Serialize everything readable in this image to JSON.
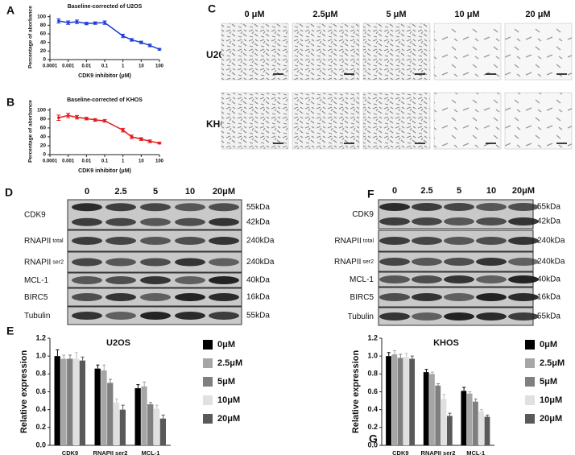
{
  "chart_data": [
    {
      "type": "line",
      "panel": "A",
      "title": "Baseline-corrected of U2OS",
      "x_label": "CDK9 inhibitor (μM)",
      "y_label": "Percentage of aborbance",
      "x": [
        0.0003,
        0.001,
        0.003,
        0.01,
        0.03,
        0.1,
        1,
        3,
        10,
        30,
        100
      ],
      "values": [
        90,
        86,
        88,
        84,
        85,
        86,
        55,
        46,
        40,
        33,
        24
      ],
      "errors": [
        5,
        4,
        4,
        3,
        3,
        4,
        4,
        3,
        3,
        3,
        2
      ],
      "color": "#1f3fd6",
      "log_x": true,
      "xlim": [
        0.0001,
        100
      ],
      "xticks": [
        0.0001,
        0.001,
        0.01,
        0.1,
        1,
        10,
        100
      ],
      "ylim": [
        0,
        105
      ],
      "yticks": [
        0,
        20,
        40,
        60,
        80,
        100
      ]
    },
    {
      "type": "line",
      "panel": "B",
      "title": "Baseline-corrected of KHOS",
      "x_label": "CDK9 inhibitor (μM)",
      "y_label": "Percentage of aborbance",
      "x": [
        0.0003,
        0.001,
        0.003,
        0.01,
        0.03,
        0.1,
        1,
        3,
        10,
        30,
        100
      ],
      "values": [
        83,
        88,
        84,
        81,
        78,
        76,
        55,
        40,
        35,
        30,
        26
      ],
      "errors": [
        6,
        5,
        4,
        3,
        3,
        3,
        4,
        4,
        3,
        3,
        2
      ],
      "color": "#e31a1c",
      "log_x": true,
      "xlim": [
        0.0001,
        100
      ],
      "xticks": [
        0.0001,
        0.001,
        0.01,
        0.1,
        1,
        10,
        100
      ],
      "ylim": [
        0,
        105
      ],
      "yticks": [
        0,
        20,
        40,
        60,
        80,
        100
      ]
    },
    {
      "type": "bar",
      "panel": "E",
      "title": "U2OS",
      "y_label": "Relative expression",
      "categories": [
        "CDK9",
        "RNAPII ser2",
        "MCL-1"
      ],
      "series": [
        {
          "name": "0μM",
          "color": "#000000",
          "values": [
            1.0,
            0.86,
            0.64
          ],
          "errors": [
            0.07,
            0.04,
            0.04
          ]
        },
        {
          "name": "2.5μM",
          "color": "#a6a6a6",
          "values": [
            0.97,
            0.84,
            0.66
          ],
          "errors": [
            0.04,
            0.06,
            0.05
          ]
        },
        {
          "name": "5μM",
          "color": "#7f7f7f",
          "values": [
            0.97,
            0.7,
            0.46
          ],
          "errors": [
            0.04,
            0.04,
            0.02
          ]
        },
        {
          "name": "10μM",
          "color": "#e0e0e0",
          "values": [
            0.97,
            0.48,
            0.41
          ],
          "errors": [
            0.07,
            0.04,
            0.04
          ]
        },
        {
          "name": "20μM",
          "color": "#595959",
          "values": [
            0.95,
            0.4,
            0.3
          ],
          "errors": [
            0.04,
            0.05,
            0.04
          ]
        }
      ],
      "ylim": [
        0,
        1.2
      ],
      "yticks": [
        {
          "value": 0,
          "label": "0.0"
        },
        0.2,
        0.4,
        0.6,
        0.8,
        {
          "value": 1,
          "label": "1.0"
        },
        1.2
      ]
    },
    {
      "type": "bar",
      "panel": "G",
      "title": "KHOS",
      "y_label": "Relative expression",
      "categories": [
        "CDK9",
        "RNAPII ser2",
        "MCL-1"
      ],
      "series": [
        {
          "name": "0μM",
          "color": "#000000",
          "values": [
            1.0,
            0.82,
            0.61
          ],
          "errors": [
            0.04,
            0.03,
            0.04
          ]
        },
        {
          "name": "2.5μM",
          "color": "#a6a6a6",
          "values": [
            1.02,
            0.8,
            0.58
          ],
          "errors": [
            0.04,
            0.02,
            0.02
          ]
        },
        {
          "name": "5μM",
          "color": "#7f7f7f",
          "values": [
            0.98,
            0.67,
            0.49
          ],
          "errors": [
            0.04,
            0.02,
            0.03
          ]
        },
        {
          "name": "10μM",
          "color": "#e0e0e0",
          "values": [
            0.99,
            0.52,
            0.38
          ],
          "errors": [
            0.04,
            0.05,
            0.02
          ]
        },
        {
          "name": "20μM",
          "color": "#595959",
          "values": [
            0.97,
            0.33,
            0.32
          ],
          "errors": [
            0.03,
            0.03,
            0.02
          ]
        }
      ],
      "ylim": [
        0,
        1.2
      ],
      "yticks": [
        {
          "value": 0,
          "label": "0.0"
        },
        0.2,
        0.4,
        0.6,
        0.8,
        {
          "value": 1,
          "label": "1.0"
        },
        1.2
      ]
    }
  ],
  "micrographs": {
    "panel": "C",
    "columns": [
      "0 μM",
      "2.5μM",
      "5 μM",
      "10 μM",
      "20 μM"
    ],
    "rows": [
      "U20S",
      "KHOS"
    ]
  },
  "blots": [
    {
      "panel": "D",
      "lanes": [
        "0",
        "2.5",
        "5",
        "10",
        "20μM"
      ],
      "rows": [
        {
          "label": "CDK9",
          "kda": [
            "55kDa",
            "42kDa"
          ]
        },
        {
          "label": "RNAPII",
          "sub": "total",
          "kda": [
            "240kDa"
          ]
        },
        {
          "label": "RNAPII",
          "sub": "ser2",
          "kda": [
            "240kDa"
          ]
        },
        {
          "label": "MCL-1",
          "kda": [
            "40kDa"
          ]
        },
        {
          "label": "BIRC5",
          "kda": [
            "16kDa"
          ]
        },
        {
          "label": "Tubulin",
          "kda": [
            "55kDa"
          ]
        }
      ]
    },
    {
      "panel": "F",
      "lanes": [
        "0",
        "2.5",
        "5",
        "10",
        "20μM"
      ],
      "rows": [
        {
          "label": "CDK9",
          "kda": [
            "55kDa",
            "42kDa"
          ]
        },
        {
          "label": "RNAPII",
          "sub": "total",
          "kda": [
            "240kDa"
          ]
        },
        {
          "label": "RNAPII",
          "sub": "ser2",
          "kda": [
            "240kDa"
          ]
        },
        {
          "label": "MCL-1",
          "kda": [
            "40kDa"
          ]
        },
        {
          "label": "BIRC5",
          "kda": [
            "16kDa"
          ]
        },
        {
          "label": "Tubulin",
          "kda": [
            "55kDa"
          ]
        }
      ]
    }
  ]
}
